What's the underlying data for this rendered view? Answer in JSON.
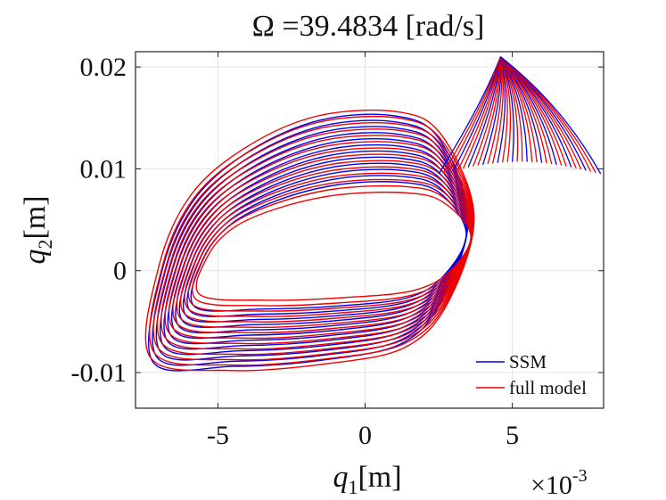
{
  "chart_data": {
    "type": "line",
    "title_prefix": "Ω =",
    "title_value": "39.4834 [rad/s]",
    "xlabel_var": "q",
    "xlabel_sub": "1",
    "xlabel_unit": "[m]",
    "ylabel_var": "q",
    "ylabel_sub": "2",
    "ylabel_unit": "[m]",
    "x_multiplier_base": "×10",
    "x_multiplier_exp": "-3",
    "xlim": [
      -7.8,
      8.1
    ],
    "ylim": [
      -0.0135,
      0.0215
    ],
    "x_ticks": [
      {
        "value": -5,
        "label": "-5"
      },
      {
        "value": 0,
        "label": "0"
      },
      {
        "value": 5,
        "label": "5"
      }
    ],
    "y_ticks": [
      {
        "value": -0.01,
        "label": "-0.01"
      },
      {
        "value": 0,
        "label": "0"
      },
      {
        "value": 0.01,
        "label": "0.01"
      },
      {
        "value": 0.02,
        "label": "0.02"
      }
    ],
    "grid": true,
    "legend_position": "bottom-right",
    "series": [
      {
        "name": "SSM",
        "color": "#0000ee",
        "loop": [
          [
            -7.2,
            -0.009
          ],
          [
            -6.9,
            0.0
          ],
          [
            -5.8,
            0.007
          ],
          [
            -3.9,
            0.0118
          ],
          [
            -1.5,
            0.0148
          ],
          [
            1.0,
            0.0152
          ],
          [
            2.5,
            0.013
          ],
          [
            3.5,
            0.0052
          ],
          [
            2.6,
            -0.003
          ],
          [
            1.2,
            -0.0072
          ],
          [
            -1.5,
            -0.0088
          ],
          [
            -4.5,
            -0.0094
          ]
        ],
        "shrink_steps": 12
      },
      {
        "name": "full model",
        "color": "#ee0000",
        "loop": [
          [
            -7.3,
            -0.0085
          ],
          [
            -7.0,
            0.0005
          ],
          [
            -5.9,
            0.0075
          ],
          [
            -4.0,
            0.0122
          ],
          [
            -1.6,
            0.0152
          ],
          [
            1.1,
            0.0156
          ],
          [
            2.6,
            0.0133
          ],
          [
            3.7,
            0.0054
          ],
          [
            2.8,
            -0.0032
          ],
          [
            1.3,
            -0.0076
          ],
          [
            -1.5,
            -0.0092
          ],
          [
            -4.6,
            -0.0098
          ]
        ],
        "shrink_steps": 14
      }
    ],
    "cone": {
      "apex": [
        4.6,
        0.021
      ],
      "tip": [
        8.0,
        0.0095
      ],
      "base": [
        2.5,
        0.0095
      ]
    }
  }
}
